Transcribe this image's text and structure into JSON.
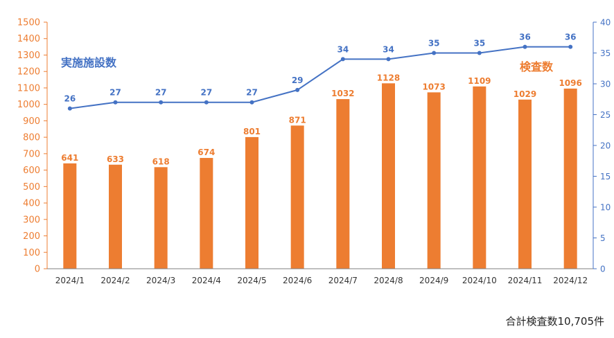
{
  "chart_data": {
    "type": "bar",
    "categories": [
      "2024/1",
      "2024/2",
      "2024/3",
      "2024/4",
      "2024/5",
      "2024/6",
      "2024/7",
      "2024/8",
      "2024/9",
      "2024/10",
      "2024/11",
      "2024/12"
    ],
    "series": [
      {
        "name": "検査数",
        "type": "bar",
        "axis": "left",
        "color": "#ED7D31",
        "values": [
          641,
          633,
          618,
          674,
          801,
          871,
          1032,
          1128,
          1073,
          1109,
          1029,
          1096
        ]
      },
      {
        "name": "実施施設数",
        "type": "line",
        "axis": "right",
        "color": "#4472C4",
        "values": [
          26,
          27,
          27,
          27,
          27,
          29,
          34,
          34,
          35,
          35,
          36,
          36
        ]
      }
    ],
    "y_left": {
      "min": 0,
      "max": 1500,
      "step": 100,
      "color": "#ED7D31"
    },
    "y_right": {
      "min": 0,
      "max": 40,
      "step": 5,
      "color": "#4472C4"
    },
    "grid": false,
    "data_labels": true
  },
  "footer": {
    "total_text": "合計検査数10,705件"
  }
}
